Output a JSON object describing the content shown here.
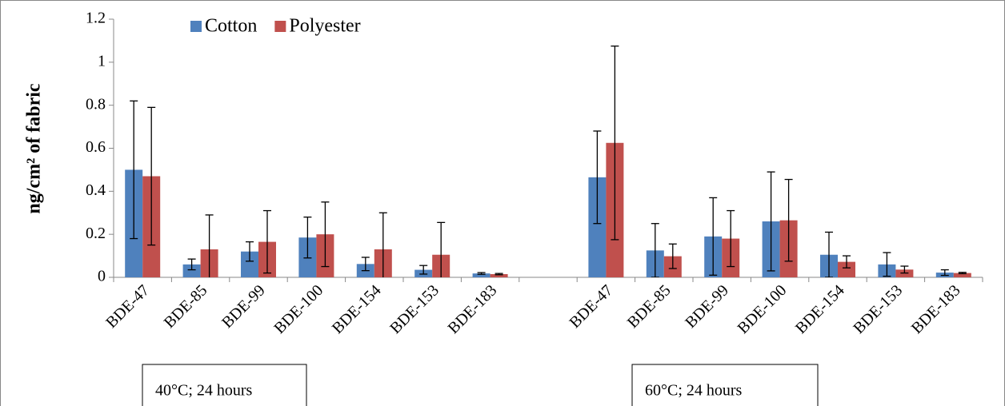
{
  "chart_data": {
    "type": "bar",
    "y_label": "ng/cm² of fabric",
    "categories": [
      "BDE-47",
      "BDE-85",
      "BDE-99",
      "BDE-100",
      "BDE-154",
      "BDE-153",
      "BDE-183",
      null,
      "BDE-47",
      "BDE-85",
      "BDE-99",
      "BDE-100",
      "BDE-154",
      "BDE-153",
      "BDE-183"
    ],
    "series": [
      {
        "name": "Cotton",
        "color": "#4f81bd",
        "values": [
          0.5,
          0.06,
          0.12,
          0.185,
          0.062,
          0.035,
          0.018,
          null,
          0.465,
          0.125,
          0.19,
          0.26,
          0.105,
          0.06,
          0.022
        ],
        "errors": [
          0.32,
          0.025,
          0.045,
          0.095,
          0.031,
          0.02,
          0.004,
          null,
          0.215,
          0.125,
          0.18,
          0.23,
          0.105,
          0.055,
          0.013
        ]
      },
      {
        "name": "Polyester",
        "color": "#c0504d",
        "values": [
          0.47,
          0.13,
          0.165,
          0.2,
          0.13,
          0.105,
          0.015,
          null,
          0.625,
          0.098,
          0.18,
          0.265,
          0.072,
          0.036,
          0.02
        ],
        "errors": [
          0.32,
          0.16,
          0.145,
          0.15,
          0.17,
          0.15,
          0.003,
          null,
          0.45,
          0.057,
          0.13,
          0.19,
          0.028,
          0.016,
          0.003
        ]
      }
    ],
    "ylim": [
      0,
      1.2
    ],
    "yticks": [
      0,
      0.2,
      0.4,
      0.6,
      0.8,
      1,
      1.2
    ],
    "grid": false,
    "legend": "upper left",
    "annotations": [
      "40°C; 24 hours",
      "60°C; 24 hours"
    ]
  }
}
